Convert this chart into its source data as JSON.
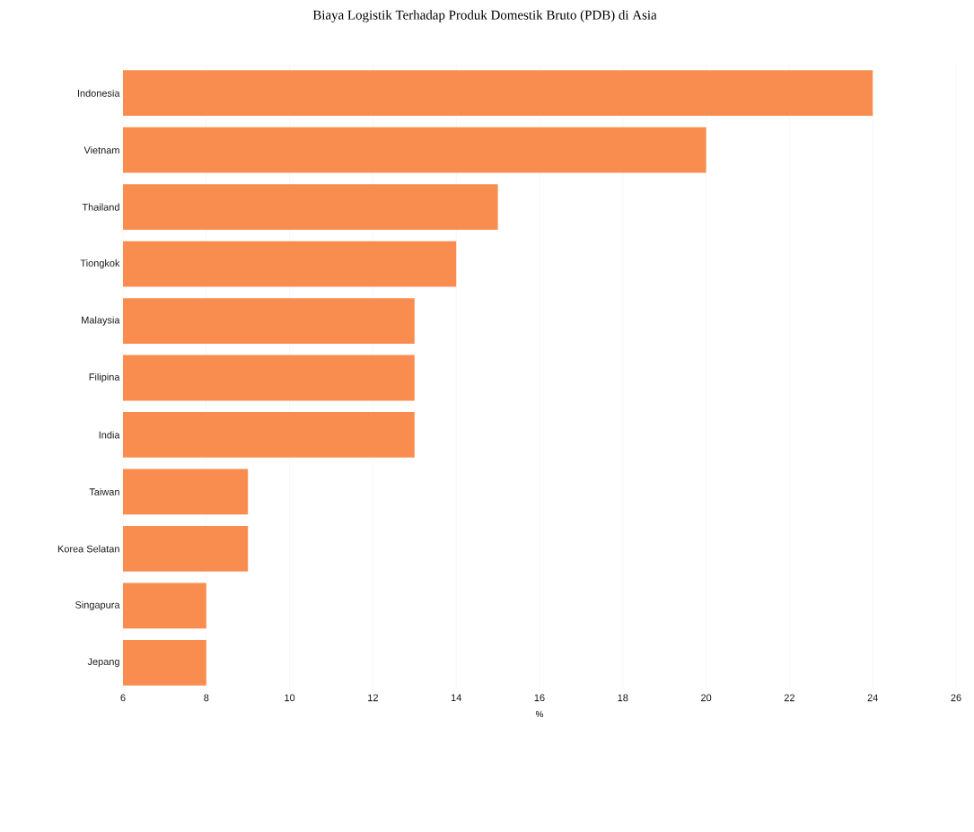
{
  "chart_data": {
    "type": "bar",
    "orientation": "horizontal",
    "title": "Biaya Logistik Terhadap Produk Domestik Bruto (PDB) di Asia",
    "xlabel": "%",
    "categories": [
      "Indonesia",
      "Vietnam",
      "Thailand",
      "Tiongkok",
      "Malaysia",
      "Filipina",
      "India",
      "Taiwan",
      "Korea Selatan",
      "Singapura",
      "Jepang"
    ],
    "values": [
      24,
      20,
      15,
      14,
      13,
      13,
      13,
      9,
      9,
      8,
      8
    ],
    "color": "#f98d4f",
    "xlim": [
      6,
      26
    ],
    "xticks": [
      6,
      8,
      10,
      12,
      14,
      16,
      18,
      20,
      22,
      24,
      26
    ],
    "grid": "x"
  }
}
